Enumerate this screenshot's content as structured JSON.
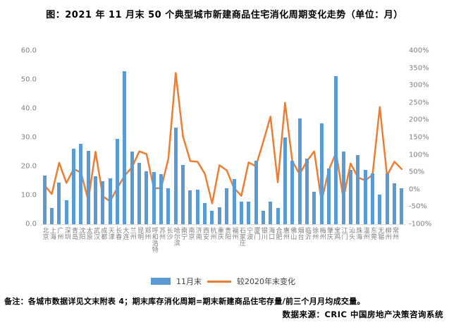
{
  "title": "图：2021 年 11 月末 50 个典型城市新建商品住宅消化周期变化走势（单位：月）",
  "legend": {
    "bar_label": "11月末",
    "line_label": "较2020年末变化"
  },
  "notes": {
    "remark": "备注：各城市数据详见文末附表 4；期末库存消化周期=期末新建商品住宅存量/前三个月月均成交量。",
    "source": "数据来源：CRIC 中国房地产决策咨询系统"
  },
  "colors": {
    "bar": "#5b9bd5",
    "line": "#ed7d31",
    "axis_text": "#7f7f7f",
    "baseline": "#d9d9d9",
    "text": "#000000"
  },
  "chart_data": {
    "type": "bar",
    "subtype": "bar-line-combo",
    "title": "图：2021 年 11 月末 50 个典型城市新建商品住宅消化周期变化走势（单位：月）",
    "categories": [
      "北京",
      "上海",
      "广州",
      "深圳",
      "青岛",
      "沈阳",
      "太原",
      "武汉",
      "成都",
      "天津",
      "长春",
      "大连",
      "兰州",
      "昆明",
      "郑州",
      "呼和浩特",
      "苏州",
      "长沙",
      "哈尔滨",
      "南宁",
      "南京",
      "济南",
      "西安",
      "杭州",
      "重庆",
      "贵阳",
      "福州",
      "石家庄",
      "宁波",
      "厦门",
      "银川",
      "海口",
      "合肥",
      "惠州",
      "佛山",
      "烟台",
      "临沂",
      "徐州",
      "梅州",
      "肇庆",
      "宝鸡",
      "江门",
      "汕头",
      "珠海",
      "温州",
      "东莞",
      "无锡",
      "柳州",
      "常州",
      ""
    ],
    "series": [
      {
        "name": "11月末",
        "type": "bar",
        "axis": "left",
        "unit": "月",
        "values": [
          16.9,
          5.5,
          14.4,
          8.4,
          26.1,
          27.7,
          25.3,
          16.7,
          14.9,
          15.8,
          29.6,
          52.9,
          25.1,
          21.3,
          18.2,
          18.0,
          17.2,
          12.4,
          33.3,
          20.6,
          11.8,
          12.0,
          7.3,
          4.7,
          5.8,
          12.4,
          15.5,
          7.7,
          7.7,
          21.9,
          4.7,
          7.7,
          5.6,
          30.0,
          21.9,
          36.7,
          22.7,
          11.3,
          34.8,
          19.3,
          51.2,
          25.1,
          18.9,
          23.8,
          18.9,
          17.6,
          10.3,
          17.6,
          14.2,
          12.4
        ]
      },
      {
        "name": "较2020年末变化",
        "type": "line",
        "axis": "right",
        "unit": "%",
        "values": [
          12,
          -13,
          77,
          19,
          59,
          49,
          -31,
          109,
          -20,
          -34,
          5,
          40,
          64,
          110,
          102,
          3,
          4,
          89,
          336,
          153,
          82,
          80,
          45,
          -40,
          70,
          55,
          4,
          -18,
          78,
          67,
          137,
          210,
          21,
          250,
          82,
          44,
          82,
          110,
          -34,
          55,
          107,
          -26,
          75,
          35,
          26,
          42,
          238,
          40,
          80,
          59
        ]
      }
    ],
    "left_axis": {
      "min": 0,
      "max": 60,
      "step": 10,
      "ticks": [
        "0.0",
        "10.0",
        "20.0",
        "30.0",
        "40.0",
        "50.0",
        "60.0"
      ]
    },
    "right_axis": {
      "min": -100,
      "max": 400,
      "step": 50,
      "ticks": [
        "-100%",
        "-50%",
        "0%",
        "50%",
        "100%",
        "150%",
        "200%",
        "250%",
        "300%",
        "350%",
        "400%"
      ]
    },
    "grid": false,
    "legend_position": "bottom"
  }
}
